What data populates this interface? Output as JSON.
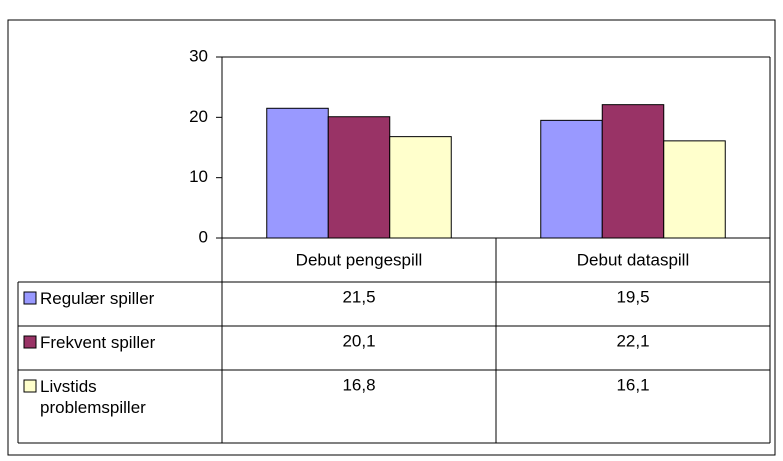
{
  "chart_data": {
    "type": "bar",
    "categories": [
      "Debut pengespill",
      "Debut dataspill"
    ],
    "series": [
      {
        "name": "Regulær spiller",
        "color": "#9999ff",
        "values": [
          21.5,
          19.5
        ],
        "value_labels": [
          "21,5",
          "19,5"
        ]
      },
      {
        "name": "Frekvent spiller",
        "color": "#993366",
        "values": [
          20.1,
          22.1
        ],
        "value_labels": [
          "20,1",
          "22,1"
        ]
      },
      {
        "name": "Livstids problemspiller",
        "color": "#ffffcc",
        "values": [
          16.8,
          16.1
        ],
        "value_labels": [
          "16,8",
          "16,1"
        ]
      }
    ],
    "ylim": [
      0,
      30
    ],
    "yticks": [
      0,
      10,
      20,
      30
    ],
    "grid": false
  }
}
